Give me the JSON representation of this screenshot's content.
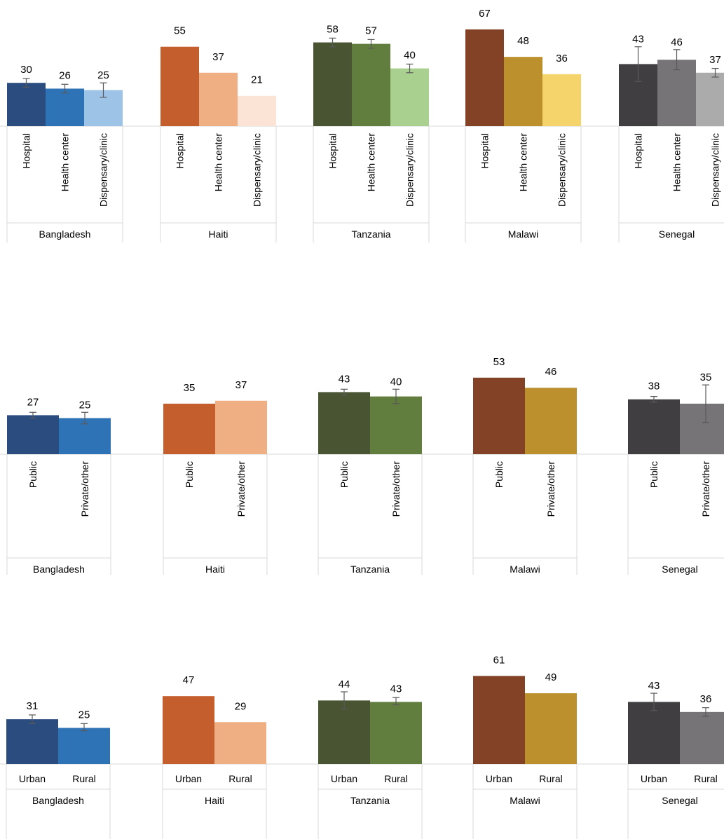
{
  "chart_data": [
    {
      "type": "bar",
      "ylim": [
        0,
        70
      ],
      "groups": [
        {
          "country": "Bangladesh",
          "bars": [
            {
              "label": "Hospital",
              "value": 30,
              "err": [
                27,
                33
              ],
              "color": "#2b4c7e"
            },
            {
              "label": "Health center",
              "value": 26,
              "err": [
                23,
                29
              ],
              "color": "#2e73b5"
            },
            {
              "label": "Dispensary/clinic",
              "value": 25,
              "err": [
                20,
                30
              ],
              "color": "#9dc3e6"
            }
          ]
        },
        {
          "country": "Haiti",
          "bars": [
            {
              "label": "Hospital",
              "value": 55,
              "color": "#c45e2c"
            },
            {
              "label": "Health center",
              "value": 37,
              "color": "#efaf82"
            },
            {
              "label": "Dispensary/clinic",
              "value": 21,
              "color": "#fbe3d5"
            }
          ]
        },
        {
          "country": "Tanzania",
          "bars": [
            {
              "label": "Hospital",
              "value": 58,
              "err": [
                55,
                61
              ],
              "color": "#495433"
            },
            {
              "label": "Health center",
              "value": 57,
              "err": [
                54,
                60
              ],
              "color": "#617e3e"
            },
            {
              "label": "Dispensary/clinic",
              "value": 40,
              "err": [
                37,
                43
              ],
              "color": "#a9d08e"
            }
          ]
        },
        {
          "country": "Malawi",
          "bars": [
            {
              "label": "Hospital",
              "value": 67,
              "color": "#834226"
            },
            {
              "label": "Health center",
              "value": 48,
              "color": "#bc912d"
            },
            {
              "label": "Dispensary/clinic",
              "value": 36,
              "color": "#f5d46c"
            }
          ]
        },
        {
          "country": "Senegal",
          "bars": [
            {
              "label": "Hospital",
              "value": 43,
              "err": [
                31,
                55
              ],
              "color": "#403e40"
            },
            {
              "label": "Health center",
              "value": 46,
              "err": [
                39,
                53
              ],
              "color": "#767476"
            },
            {
              "label": "Dispensary/clinic",
              "value": 37,
              "err": [
                34,
                40
              ],
              "color": "#ababab"
            }
          ]
        }
      ]
    },
    {
      "type": "bar",
      "ylim": [
        0,
        70
      ],
      "groups": [
        {
          "country": "Bangladesh",
          "bars": [
            {
              "label": "Public",
              "value": 27,
              "err": [
                25,
                29
              ],
              "color": "#2b4c7e"
            },
            {
              "label": "Private/other",
              "value": 25,
              "err": [
                21,
                29
              ],
              "color": "#2e73b5"
            }
          ]
        },
        {
          "country": "Haiti",
          "bars": [
            {
              "label": "Public",
              "value": 35,
              "color": "#c45e2c"
            },
            {
              "label": "Private/other",
              "value": 37,
              "color": "#efaf82"
            }
          ]
        },
        {
          "country": "Tanzania",
          "bars": [
            {
              "label": "Public",
              "value": 43,
              "err": [
                41,
                45
              ],
              "color": "#495433"
            },
            {
              "label": "Private/other",
              "value": 40,
              "err": [
                35,
                45
              ],
              "color": "#617e3e"
            }
          ]
        },
        {
          "country": "Malawi",
          "bars": [
            {
              "label": "Public",
              "value": 53,
              "color": "#834226"
            },
            {
              "label": "Private/other",
              "value": 46,
              "color": "#bc912d"
            }
          ]
        },
        {
          "country": "Senegal",
          "bars": [
            {
              "label": "Public",
              "value": 38,
              "err": [
                36,
                40
              ],
              "color": "#403e40"
            },
            {
              "label": "Private/other",
              "value": 35,
              "err": [
                22,
                48
              ],
              "color": "#767476"
            }
          ]
        }
      ]
    },
    {
      "type": "bar",
      "ylim": [
        0,
        70
      ],
      "groups": [
        {
          "country": "Bangladesh",
          "bars": [
            {
              "label": "Urban",
              "value": 31,
              "err": [
                28,
                34
              ],
              "color": "#2b4c7e"
            },
            {
              "label": "Rural",
              "value": 25,
              "err": [
                23,
                28
              ],
              "color": "#2e73b5"
            }
          ]
        },
        {
          "country": "Haiti",
          "bars": [
            {
              "label": "Urban",
              "value": 47,
              "color": "#c45e2c"
            },
            {
              "label": "Rural",
              "value": 29,
              "color": "#efaf82"
            }
          ]
        },
        {
          "country": "Tanzania",
          "bars": [
            {
              "label": "Urban",
              "value": 44,
              "err": [
                38,
                50
              ],
              "color": "#495433"
            },
            {
              "label": "Rural",
              "value": 43,
              "err": [
                41,
                46
              ],
              "color": "#617e3e"
            }
          ]
        },
        {
          "country": "Malawi",
          "bars": [
            {
              "label": "Urban",
              "value": 61,
              "color": "#834226"
            },
            {
              "label": "Rural",
              "value": 49,
              "color": "#bc912d"
            }
          ]
        },
        {
          "country": "Senegal",
          "bars": [
            {
              "label": "Urban",
              "value": 43,
              "err": [
                37,
                49
              ],
              "color": "#403e40"
            },
            {
              "label": "Rural",
              "value": 36,
              "err": [
                33,
                39
              ],
              "color": "#767476"
            }
          ]
        }
      ]
    }
  ]
}
